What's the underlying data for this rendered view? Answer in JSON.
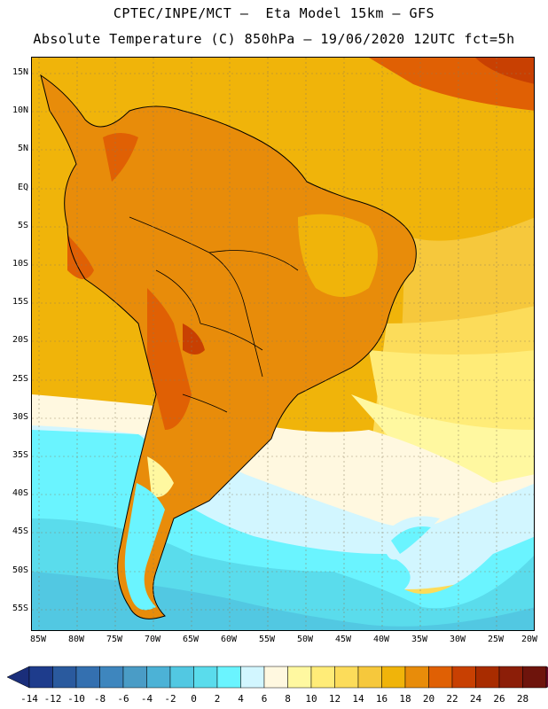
{
  "header": {
    "title_line1": "CPTEC/INPE/MCT –  Eta Model 15km – GFS",
    "title_line2": "Absolute Temperature (C) 850hPa – 19/06/2020 12UTC fct=5h"
  },
  "map": {
    "lat_labels": [
      "15N",
      "10N",
      "5N",
      "EQ",
      "5S",
      "10S",
      "15S",
      "20S",
      "25S",
      "30S",
      "35S",
      "40S",
      "45S",
      "50S",
      "55S"
    ],
    "lon_labels": [
      "85W",
      "80W",
      "75W",
      "70W",
      "65W",
      "60W",
      "55W",
      "50W",
      "45W",
      "40W",
      "35W",
      "30W",
      "25W",
      "20W"
    ],
    "region": "South America",
    "variable": "Absolute Temperature (C) 850hPa"
  },
  "colorbar": {
    "labels": [
      "-14",
      "-12",
      "-10",
      "-8",
      "-6",
      "-4",
      "-2",
      "0",
      "2",
      "4",
      "6",
      "8",
      "10",
      "12",
      "14",
      "16",
      "18",
      "20",
      "22",
      "24",
      "26",
      "28"
    ],
    "colors": [
      "#1e3c8c",
      "#2a5a9e",
      "#3470b0",
      "#3e86be",
      "#4a9cc6",
      "#4cb2d6",
      "#52c8e2",
      "#5adcec",
      "#6af4ff",
      "#d2f6ff",
      "#fff8e0",
      "#fff8a0",
      "#ffec78",
      "#fcdc5a",
      "#f6c83c",
      "#f0b40a",
      "#e88c0a",
      "#e06004",
      "#c84002",
      "#a82c00",
      "#8c1e08",
      "#6e140c"
    ],
    "under_color": "#1a2e7a",
    "over_color": "#6a0a2a"
  }
}
